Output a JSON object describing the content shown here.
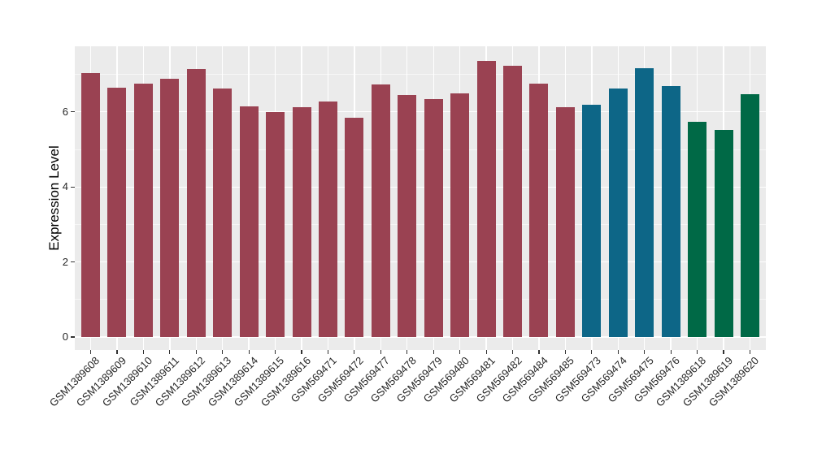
{
  "chart_data": {
    "type": "bar",
    "title": "",
    "xlabel": "",
    "ylabel": "Expression Level",
    "categories": [
      "GSM1389608",
      "GSM1389609",
      "GSM1389610",
      "GSM1389611",
      "GSM1389612",
      "GSM1389613",
      "GSM1389614",
      "GSM1389615",
      "GSM1389616",
      "GSM569471",
      "GSM569472",
      "GSM569477",
      "GSM569478",
      "GSM569479",
      "GSM569480",
      "GSM569481",
      "GSM569482",
      "GSM569484",
      "GSM569485",
      "GSM569473",
      "GSM569474",
      "GSM569475",
      "GSM569476",
      "GSM1389618",
      "GSM1389619",
      "GSM1389620"
    ],
    "values": [
      7.03,
      6.64,
      6.76,
      6.88,
      7.14,
      6.63,
      6.15,
      6.0,
      6.13,
      6.27,
      5.84,
      6.74,
      6.44,
      6.34,
      6.5,
      7.36,
      7.23,
      6.75,
      6.13,
      6.19,
      6.62,
      7.17,
      6.69,
      5.74,
      5.51,
      6.48
    ],
    "groups": [
      "g1",
      "g1",
      "g1",
      "g1",
      "g1",
      "g1",
      "g1",
      "g1",
      "g1",
      "g1",
      "g1",
      "g1",
      "g1",
      "g1",
      "g1",
      "g1",
      "g1",
      "g1",
      "g1",
      "g2",
      "g2",
      "g2",
      "g2",
      "g3",
      "g3",
      "g3"
    ],
    "group_colors": {
      "g1": "#9A4252",
      "g2": "#0D6687",
      "g3": "#006946"
    },
    "yticks": [
      0,
      2,
      4,
      6
    ],
    "yminor": [
      1,
      3,
      5,
      7
    ],
    "ylim": [
      0,
      7.73
    ],
    "grid": true,
    "legend": false,
    "panel_bg": "#EBEBEB",
    "grid_color": "#FFFFFF",
    "axis_text_color": "#262626",
    "axis_title_color": "#000000",
    "tick_color": "#333333"
  }
}
